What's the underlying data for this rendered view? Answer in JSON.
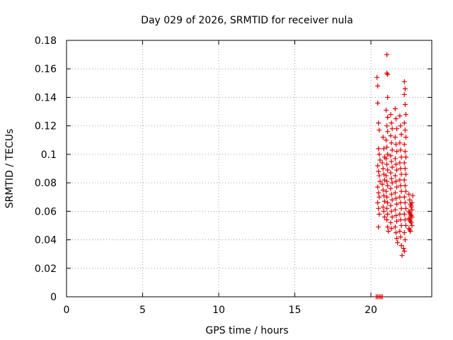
{
  "chart_data": {
    "type": "scatter",
    "title": "Day 029 of 2026, SRMTID for receiver nula",
    "xlabel": "GPS time / hours",
    "ylabel": "SRMTID / TECUs",
    "xlim": [
      0,
      24
    ],
    "ylim": [
      0,
      0.18
    ],
    "x_ticks": [
      0,
      5,
      10,
      15,
      20
    ],
    "x_tick_labels": [
      "0",
      "5",
      "10",
      "15",
      "20"
    ],
    "y_ticks": [
      0,
      0.02,
      0.04,
      0.06,
      0.08,
      0.1,
      0.12,
      0.14,
      0.16,
      0.18
    ],
    "y_tick_labels": [
      "0",
      "0.02",
      "0.04",
      "0.06",
      "0.08",
      "0.1",
      "0.12",
      "0.14",
      "0.16",
      "0.18"
    ],
    "grid": true,
    "marker": "+",
    "color": "#e00000",
    "series": [
      {
        "name": "SRMTID",
        "points": [
          [
            20.35,
            0.0
          ],
          [
            20.45,
            0.0
          ],
          [
            20.55,
            0.0
          ],
          [
            20.65,
            0.0
          ],
          [
            20.75,
            0.0
          ],
          [
            20.4,
            0.154
          ],
          [
            20.45,
            0.148
          ],
          [
            20.45,
            0.136
          ],
          [
            20.5,
            0.122
          ],
          [
            20.55,
            0.117
          ],
          [
            20.5,
            0.104
          ],
          [
            20.55,
            0.1
          ],
          [
            20.6,
            0.096
          ],
          [
            20.45,
            0.092
          ],
          [
            20.5,
            0.088
          ],
          [
            20.55,
            0.085
          ],
          [
            20.6,
            0.081
          ],
          [
            20.45,
            0.077
          ],
          [
            20.5,
            0.073
          ],
          [
            20.55,
            0.07
          ],
          [
            20.45,
            0.066
          ],
          [
            20.5,
            0.062
          ],
          [
            20.55,
            0.058
          ],
          [
            20.5,
            0.049
          ],
          [
            20.8,
            0.112
          ],
          [
            20.85,
            0.104
          ],
          [
            20.9,
            0.098
          ],
          [
            20.75,
            0.094
          ],
          [
            20.8,
            0.09
          ],
          [
            20.85,
            0.086
          ],
          [
            20.9,
            0.082
          ],
          [
            20.75,
            0.079
          ],
          [
            20.8,
            0.075
          ],
          [
            20.85,
            0.071
          ],
          [
            20.9,
            0.067
          ],
          [
            20.8,
            0.063
          ],
          [
            20.85,
            0.06
          ],
          [
            20.9,
            0.056
          ],
          [
            21.05,
            0.17
          ],
          [
            21.05,
            0.157
          ],
          [
            21.1,
            0.156
          ],
          [
            21.1,
            0.14
          ],
          [
            21.0,
            0.131
          ],
          [
            21.1,
            0.126
          ],
          [
            21.05,
            0.12
          ],
          [
            21.1,
            0.116
          ],
          [
            21.0,
            0.11
          ],
          [
            21.05,
            0.105
          ],
          [
            21.1,
            0.1
          ],
          [
            21.0,
            0.097
          ],
          [
            21.05,
            0.093
          ],
          [
            21.1,
            0.089
          ],
          [
            21.0,
            0.085
          ],
          [
            21.05,
            0.081
          ],
          [
            21.1,
            0.078
          ],
          [
            21.0,
            0.074
          ],
          [
            21.05,
            0.07
          ],
          [
            21.1,
            0.066
          ],
          [
            21.05,
            0.062
          ],
          [
            21.1,
            0.058
          ],
          [
            21.05,
            0.054
          ],
          [
            21.1,
            0.049
          ],
          [
            21.15,
            0.046
          ],
          [
            21.3,
            0.128
          ],
          [
            21.35,
            0.122
          ],
          [
            21.4,
            0.118
          ],
          [
            21.3,
            0.113
          ],
          [
            21.35,
            0.108
          ],
          [
            21.4,
            0.103
          ],
          [
            21.3,
            0.099
          ],
          [
            21.35,
            0.095
          ],
          [
            21.4,
            0.091
          ],
          [
            21.3,
            0.087
          ],
          [
            21.35,
            0.083
          ],
          [
            21.4,
            0.08
          ],
          [
            21.3,
            0.076
          ],
          [
            21.35,
            0.072
          ],
          [
            21.4,
            0.068
          ],
          [
            21.3,
            0.064
          ],
          [
            21.35,
            0.06
          ],
          [
            21.4,
            0.056
          ],
          [
            21.3,
            0.052
          ],
          [
            21.35,
            0.048
          ],
          [
            21.6,
            0.132
          ],
          [
            21.65,
            0.125
          ],
          [
            21.7,
            0.118
          ],
          [
            21.6,
            0.112
          ],
          [
            21.65,
            0.107
          ],
          [
            21.7,
            0.102
          ],
          [
            21.6,
            0.097
          ],
          [
            21.65,
            0.093
          ],
          [
            21.7,
            0.089
          ],
          [
            21.6,
            0.085
          ],
          [
            21.65,
            0.081
          ],
          [
            21.7,
            0.077
          ],
          [
            21.6,
            0.073
          ],
          [
            21.65,
            0.069
          ],
          [
            21.7,
            0.065
          ],
          [
            21.6,
            0.061
          ],
          [
            21.65,
            0.057
          ],
          [
            21.7,
            0.053
          ],
          [
            21.6,
            0.049
          ],
          [
            21.65,
            0.045
          ],
          [
            21.7,
            0.041
          ],
          [
            21.75,
            0.038
          ],
          [
            21.9,
            0.127
          ],
          [
            21.95,
            0.12
          ],
          [
            22.0,
            0.114
          ],
          [
            21.9,
            0.108
          ],
          [
            21.95,
            0.103
          ],
          [
            22.0,
            0.098
          ],
          [
            21.9,
            0.094
          ],
          [
            21.95,
            0.09
          ],
          [
            22.0,
            0.086
          ],
          [
            21.9,
            0.082
          ],
          [
            21.95,
            0.078
          ],
          [
            22.0,
            0.074
          ],
          [
            21.9,
            0.07
          ],
          [
            21.95,
            0.066
          ],
          [
            22.0,
            0.062
          ],
          [
            21.9,
            0.058
          ],
          [
            21.95,
            0.054
          ],
          [
            22.0,
            0.05
          ],
          [
            21.9,
            0.046
          ],
          [
            21.95,
            0.042
          ],
          [
            22.0,
            0.036
          ],
          [
            22.05,
            0.029
          ],
          [
            22.2,
            0.151
          ],
          [
            22.25,
            0.146
          ],
          [
            22.2,
            0.142
          ],
          [
            22.25,
            0.135
          ],
          [
            22.3,
            0.128
          ],
          [
            22.2,
            0.122
          ],
          [
            22.25,
            0.117
          ],
          [
            22.3,
            0.112
          ],
          [
            22.2,
            0.107
          ],
          [
            22.25,
            0.102
          ],
          [
            22.3,
            0.098
          ],
          [
            22.2,
            0.094
          ],
          [
            22.25,
            0.09
          ],
          [
            22.3,
            0.086
          ],
          [
            22.2,
            0.082
          ],
          [
            22.25,
            0.078
          ],
          [
            22.3,
            0.074
          ],
          [
            22.2,
            0.07
          ],
          [
            22.25,
            0.066
          ],
          [
            22.3,
            0.062
          ],
          [
            22.2,
            0.058
          ],
          [
            22.25,
            0.054
          ],
          [
            22.3,
            0.05
          ],
          [
            22.2,
            0.045
          ],
          [
            22.25,
            0.04
          ],
          [
            22.15,
            0.034
          ],
          [
            22.2,
            0.032
          ],
          [
            22.5,
            0.072
          ],
          [
            22.55,
            0.068
          ],
          [
            22.6,
            0.065
          ],
          [
            22.65,
            0.063
          ],
          [
            22.7,
            0.061
          ],
          [
            22.5,
            0.06
          ],
          [
            22.55,
            0.059
          ],
          [
            22.6,
            0.058
          ],
          [
            22.65,
            0.057
          ],
          [
            22.7,
            0.056
          ],
          [
            22.5,
            0.055
          ],
          [
            22.55,
            0.054
          ],
          [
            22.6,
            0.053
          ],
          [
            22.65,
            0.052
          ],
          [
            22.7,
            0.05
          ],
          [
            22.5,
            0.048
          ],
          [
            22.55,
            0.047
          ],
          [
            22.6,
            0.046
          ],
          [
            22.65,
            0.064
          ],
          [
            22.7,
            0.066
          ],
          [
            22.75,
            0.071
          ]
        ]
      }
    ]
  }
}
